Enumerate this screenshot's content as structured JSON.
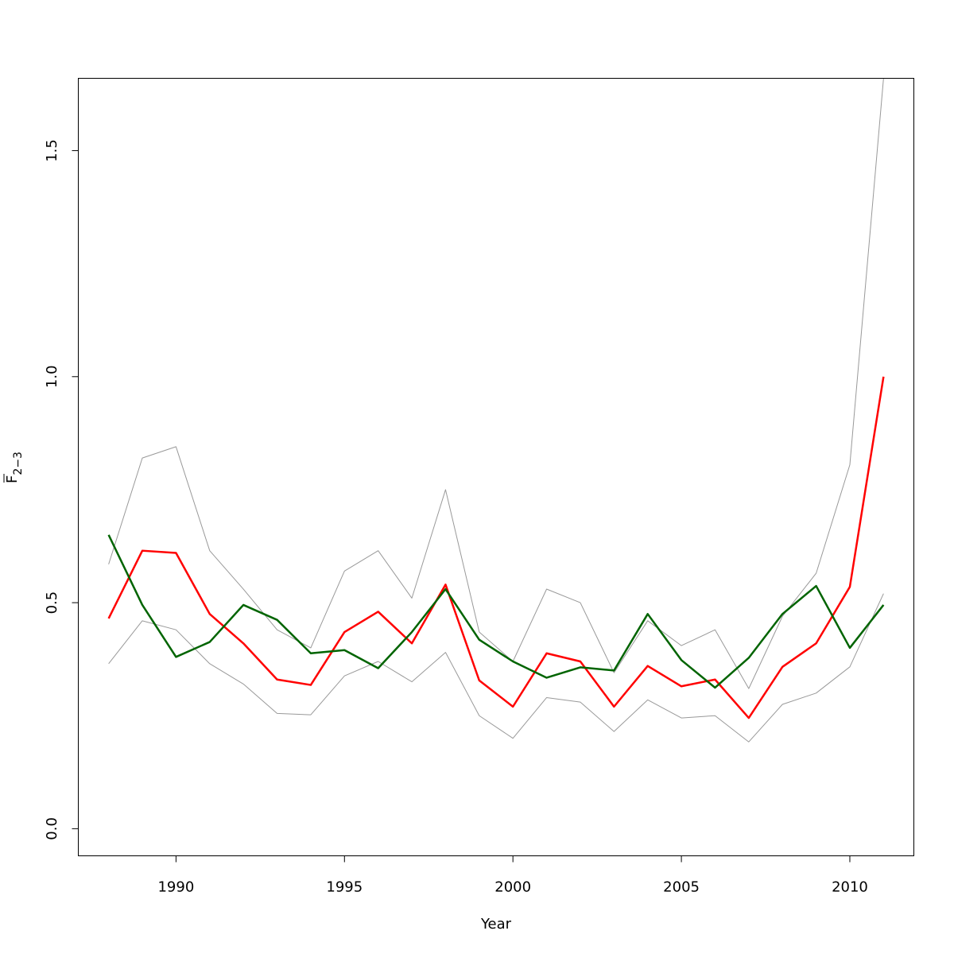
{
  "chart_data": {
    "type": "line",
    "xlabel": "Year",
    "ylabel": {
      "base": "F",
      "subscript": "2−3",
      "overline": true
    },
    "xlim": [
      1987.1,
      2011.9
    ],
    "ylim": [
      -0.06,
      1.66
    ],
    "x_ticks": [
      1990,
      1995,
      2000,
      2005,
      2010
    ],
    "x_tick_labels": [
      "1990",
      "1995",
      "2000",
      "2005",
      "2010"
    ],
    "y_ticks": [
      0.0,
      0.5,
      1.0,
      1.5
    ],
    "y_tick_labels": [
      "0.0",
      "0.5",
      "1.0",
      "1.5"
    ],
    "grid": false,
    "x": [
      1988,
      1989,
      1990,
      1991,
      1992,
      1993,
      1994,
      1995,
      1996,
      1997,
      1998,
      1999,
      2000,
      2001,
      2002,
      2003,
      2004,
      2005,
      2006,
      2007,
      2008,
      2009,
      2010,
      2011
    ],
    "series": [
      {
        "color": "#999999",
        "width": 1,
        "values": [
          0.585,
          0.82,
          0.845,
          0.615,
          0.53,
          0.44,
          0.4,
          0.57,
          0.615,
          0.51,
          0.75,
          0.435,
          0.37,
          0.53,
          0.5,
          0.345,
          0.46,
          0.405,
          0.44,
          0.31,
          0.47,
          0.565,
          0.805,
          1.66
        ]
      },
      {
        "color": "#999999",
        "width": 1,
        "values": [
          0.365,
          0.46,
          0.44,
          0.365,
          0.32,
          0.255,
          0.252,
          0.338,
          0.37,
          0.325,
          0.39,
          0.25,
          0.2,
          0.29,
          0.28,
          0.215,
          0.285,
          0.245,
          0.25,
          0.192,
          0.275,
          0.3,
          0.358,
          0.52
        ]
      },
      {
        "color": "#ff0000",
        "width": 2.5,
        "values": [
          0.465,
          0.615,
          0.61,
          0.475,
          0.41,
          0.33,
          0.318,
          0.435,
          0.48,
          0.41,
          0.54,
          0.328,
          0.27,
          0.388,
          0.37,
          0.27,
          0.36,
          0.315,
          0.33,
          0.245,
          0.358,
          0.41,
          0.535,
          1.0
        ]
      },
      {
        "color": "#006400",
        "width": 2.5,
        "values": [
          0.65,
          0.495,
          0.38,
          0.413,
          0.495,
          0.462,
          0.388,
          0.395,
          0.355,
          0.435,
          0.53,
          0.418,
          0.37,
          0.334,
          0.357,
          0.35,
          0.475,
          0.373,
          0.312,
          0.378,
          0.475,
          0.537,
          0.4,
          0.495
        ]
      }
    ]
  }
}
